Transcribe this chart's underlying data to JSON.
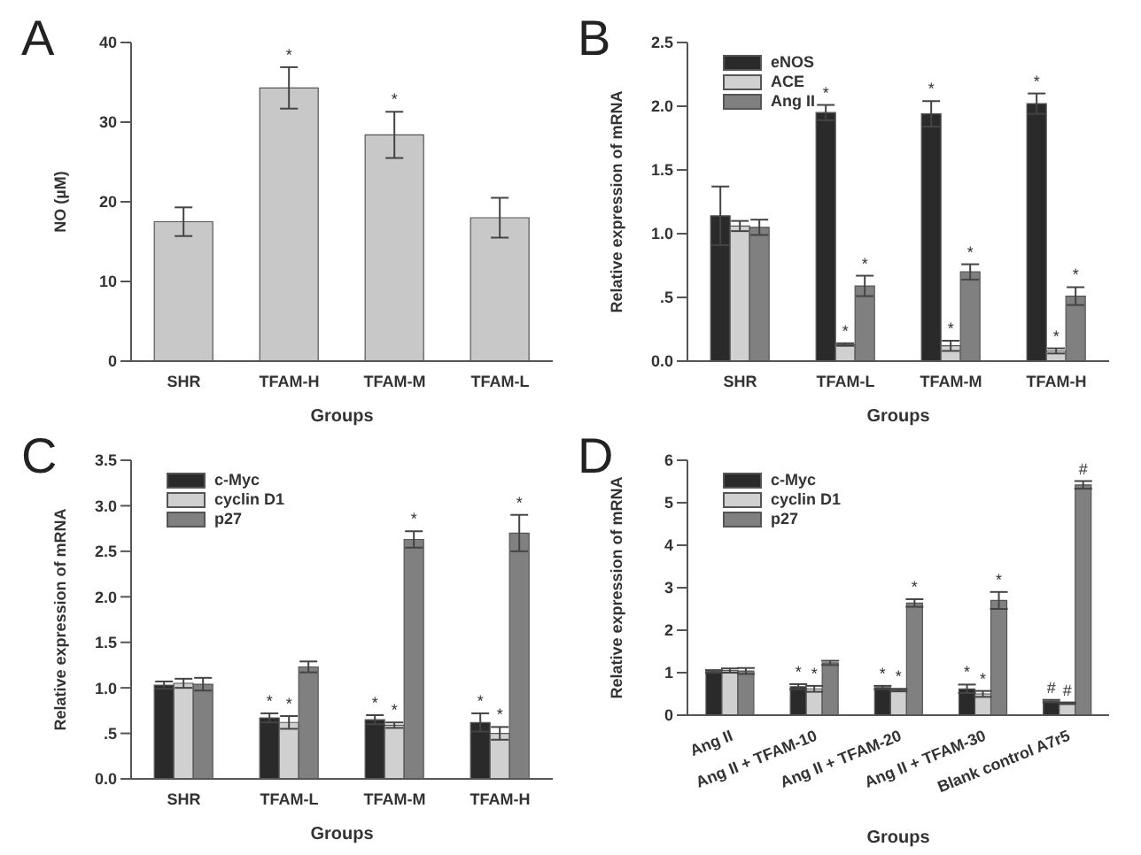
{
  "chart_data": [
    {
      "type": "bar",
      "title": "A",
      "xlabel": "Groups",
      "ylabel": "NO (µM)",
      "categories": [
        "SHR",
        "TFAM-H",
        "TFAM-M",
        "TFAM-L"
      ],
      "values": [
        17.5,
        34.3,
        28.4,
        18.0
      ],
      "errors": [
        1.8,
        2.6,
        2.9,
        2.5
      ],
      "value_labels": [
        null,
        "*",
        "*",
        null
      ],
      "color": "#c8c8c8",
      "ylim": [
        0,
        40
      ],
      "yticks": [
        0,
        10,
        20,
        30,
        40
      ],
      "grid": false,
      "legend": false
    },
    {
      "type": "bar",
      "title": "B",
      "xlabel": "Groups",
      "ylabel": "Relative expression of mRNA",
      "categories": [
        "SHR",
        "TFAM-L",
        "TFAM-M",
        "TFAM-H"
      ],
      "series": [
        {
          "name": "eNOS",
          "color": "#2a2a2a",
          "values": [
            1.14,
            1.95,
            1.94,
            2.02
          ],
          "errors": [
            0.23,
            0.06,
            0.1,
            0.08
          ],
          "value_labels": [
            null,
            "*",
            "*",
            "*"
          ]
        },
        {
          "name": "ACE",
          "color": "#d0d0d0",
          "values": [
            1.06,
            0.13,
            0.12,
            0.08
          ],
          "errors": [
            0.04,
            0.01,
            0.04,
            0.02
          ],
          "value_labels": [
            null,
            "*",
            "*",
            "*"
          ]
        },
        {
          "name": "Ang II",
          "color": "#808080",
          "values": [
            1.05,
            0.59,
            0.7,
            0.51
          ],
          "errors": [
            0.06,
            0.08,
            0.06,
            0.07
          ],
          "value_labels": [
            null,
            "*",
            "*",
            "*"
          ]
        }
      ],
      "ylim": [
        0,
        2.5
      ],
      "yticks": [
        {
          "value": 0,
          "label": "0.0"
        },
        {
          "value": 0.5,
          "label": ".5"
        },
        {
          "value": 1,
          "label": "1.0"
        },
        {
          "value": 1.5,
          "label": "1.5"
        },
        {
          "value": 2,
          "label": "2.0"
        },
        {
          "value": 2.5,
          "label": "2.5"
        }
      ],
      "grid": false,
      "legend": "top left"
    },
    {
      "type": "bar",
      "title": "C",
      "xlabel": "Groups",
      "ylabel": "Relative expression of mRNA",
      "categories": [
        "SHR",
        "TFAM-L",
        "TFAM-M",
        "TFAM-H"
      ],
      "series": [
        {
          "name": "c-Myc",
          "color": "#2a2a2a",
          "values": [
            1.03,
            0.67,
            0.65,
            0.62
          ],
          "errors": [
            0.04,
            0.05,
            0.05,
            0.1
          ],
          "value_labels": [
            null,
            "*",
            "*",
            "*"
          ]
        },
        {
          "name": "cyclin D1",
          "color": "#d0d0d0",
          "values": [
            1.05,
            0.62,
            0.59,
            0.5
          ],
          "errors": [
            0.05,
            0.07,
            0.03,
            0.07
          ],
          "value_labels": [
            null,
            "*",
            "*",
            "*"
          ]
        },
        {
          "name": "p27",
          "color": "#808080",
          "values": [
            1.04,
            1.23,
            2.63,
            2.7
          ],
          "errors": [
            0.07,
            0.06,
            0.09,
            0.2
          ],
          "value_labels": [
            null,
            null,
            "*",
            "*"
          ]
        }
      ],
      "ylim": [
        0,
        3.5
      ],
      "yticks": [
        {
          "value": 0,
          "label": "0.0"
        },
        {
          "value": 0.5,
          "label": ".5"
        },
        {
          "value": 1,
          "label": "1.0"
        },
        {
          "value": 1.5,
          "label": "1.5"
        },
        {
          "value": 2,
          "label": "2.0"
        },
        {
          "value": 2.5,
          "label": "2.5"
        },
        {
          "value": 3,
          "label": "3.0"
        },
        {
          "value": 3.5,
          "label": "3.5"
        }
      ],
      "grid": false,
      "legend": "top left"
    },
    {
      "type": "bar",
      "title": "D",
      "xlabel": "Groups",
      "ylabel": "Relative expression of mRNA",
      "categories": [
        "Ang II",
        "Ang II + TFAM-10",
        "Ang II + TFAM-20",
        "Ang II + TFAM-30",
        "Blank control A7r5"
      ],
      "series": [
        {
          "name": "c-Myc",
          "color": "#2a2a2a",
          "values": [
            1.03,
            0.67,
            0.65,
            0.62,
            0.33
          ],
          "errors": [
            0.03,
            0.06,
            0.04,
            0.1,
            0.03
          ],
          "value_labels": [
            null,
            "*",
            "*",
            "*",
            "#"
          ]
        },
        {
          "name": "cyclin D1",
          "color": "#d0d0d0",
          "values": [
            1.05,
            0.62,
            0.59,
            0.5,
            0.28
          ],
          "errors": [
            0.05,
            0.07,
            0.03,
            0.07,
            0.02
          ],
          "value_labels": [
            null,
            "*",
            "*",
            "*",
            "#"
          ]
        },
        {
          "name": "p27",
          "color": "#808080",
          "values": [
            1.04,
            1.23,
            2.64,
            2.7,
            5.42
          ],
          "errors": [
            0.07,
            0.05,
            0.09,
            0.2,
            0.09
          ],
          "value_labels": [
            null,
            null,
            "*",
            "*",
            "#"
          ]
        }
      ],
      "ylim": [
        0,
        6
      ],
      "yticks": [
        0,
        1,
        2,
        3,
        4,
        5,
        6
      ],
      "grid": false,
      "legend": "top left"
    }
  ]
}
